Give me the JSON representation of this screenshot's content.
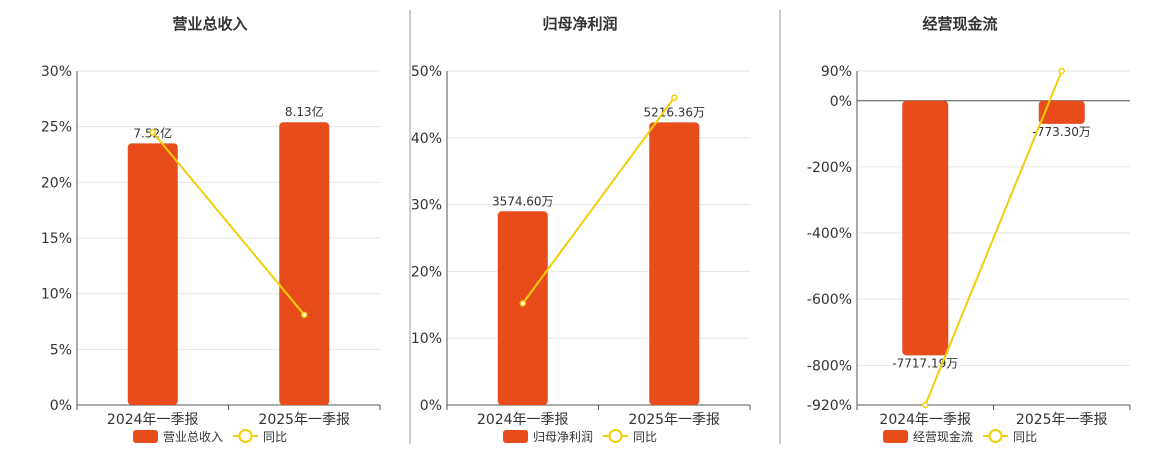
{
  "colors": {
    "bar": "#e84c1a",
    "line": "#f2cf0a",
    "grid": "#e6e6e6",
    "axis": "#555555"
  },
  "chart_data": [
    {
      "type": "bar",
      "title": "营业总收入",
      "categories": [
        "2024年一季报",
        "2025年一季报"
      ],
      "series": [
        {
          "name": "营业总收入",
          "type": "bar",
          "values": [
            23.5,
            25.4
          ],
          "labels": [
            "7.52亿",
            "8.13亿"
          ]
        },
        {
          "name": "同比",
          "type": "line",
          "values": [
            24.5,
            8.1
          ]
        }
      ],
      "yticks": [
        "30%",
        "25%",
        "20%",
        "15%",
        "10%",
        "5%",
        "0%"
      ],
      "ylim": [
        0,
        30
      ],
      "grid": true,
      "legend_position": "bottom"
    },
    {
      "type": "bar",
      "title": "归母净利润",
      "categories": [
        "2024年一季报",
        "2025年一季报"
      ],
      "series": [
        {
          "name": "归母净利润",
          "type": "bar",
          "values": [
            29.0,
            42.3
          ],
          "labels": [
            "3574.60万",
            "5216.36万"
          ]
        },
        {
          "name": "同比",
          "type": "line",
          "values": [
            15.2,
            46.0
          ]
        }
      ],
      "yticks": [
        "50%",
        "40%",
        "30%",
        "20%",
        "10%",
        "0%"
      ],
      "ylim": [
        0,
        50
      ],
      "grid": true,
      "legend_position": "bottom"
    },
    {
      "type": "bar",
      "title": "经营现金流",
      "categories": [
        "2024年一季报",
        "2025年一季报"
      ],
      "series": [
        {
          "name": "经营现金流",
          "type": "bar",
          "values": [
            -770,
            -70
          ],
          "labels": [
            "-7717.19万",
            "-773.30万"
          ]
        },
        {
          "name": "同比",
          "type": "line",
          "values": [
            -920,
            90
          ]
        }
      ],
      "yticks": [
        "90%",
        "0%",
        "-200%",
        "-400%",
        "-600%",
        "-800%",
        "-920%"
      ],
      "ylim": [
        -920,
        90
      ],
      "grid": true,
      "legend_position": "bottom"
    }
  ]
}
